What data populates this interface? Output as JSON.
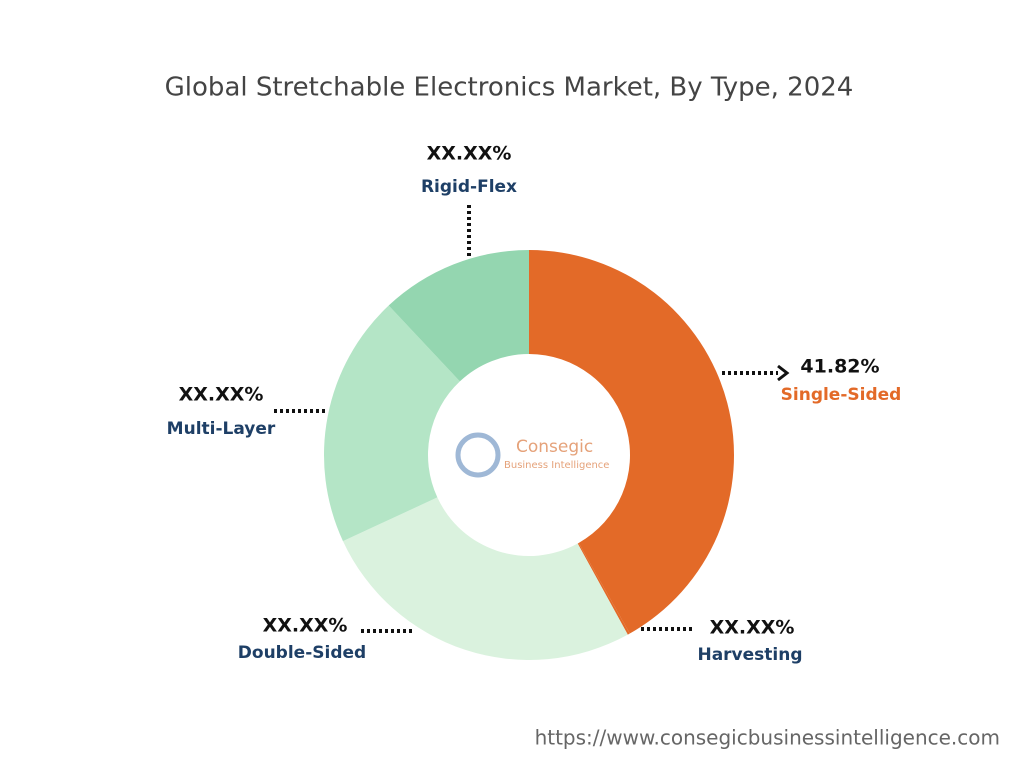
{
  "chart_data": {
    "type": "donut",
    "title": "Global Stretchable Electronics Market, By Type, 2024",
    "categories": [
      "Single-Sided",
      "Harvesting",
      "Double-Sided",
      "Multi-Layer",
      "Rigid-Flex"
    ],
    "values": [
      41.82,
      0.18,
      26.1,
      19.9,
      12.0
    ],
    "value_labels": [
      "41.82%",
      "XX.XX%",
      "XX.XX%",
      "XX.XX%",
      "XX.XX%"
    ],
    "colors": [
      "#e36a28",
      "#e36a28",
      "#daf2de",
      "#b4e5c6",
      "#94d6b0"
    ],
    "label_colors": [
      "#e36a28",
      "#1e3f66",
      "#1e3f66",
      "#1e3f66",
      "#1e3f66"
    ]
  },
  "watermark": {
    "brand": "Consegic",
    "tagline": "Business Intelligence"
  },
  "source": "https://www.consegicbusinessintelligence.com"
}
